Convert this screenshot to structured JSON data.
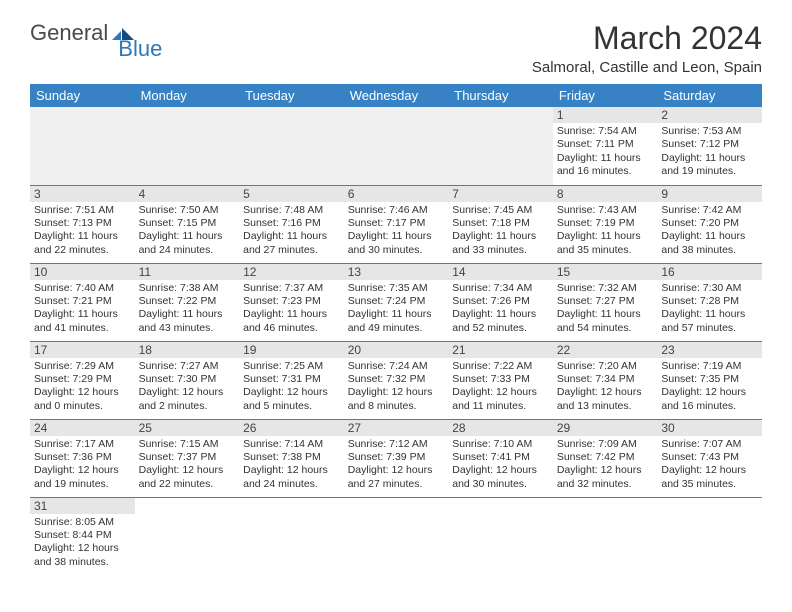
{
  "logo": {
    "text1": "General",
    "text2": "Blue"
  },
  "title": "March 2024",
  "subtitle": "Salmoral, Castille and Leon, Spain",
  "colors": {
    "header_bg": "#3682c4",
    "header_text": "#ffffff",
    "daynum_bg": "#e6e6e6",
    "empty_bg": "#f0f0f0",
    "border": "#3682c4",
    "logo_blue": "#2e78b7",
    "text": "#333333"
  },
  "daysOfWeek": [
    "Sunday",
    "Monday",
    "Tuesday",
    "Wednesday",
    "Thursday",
    "Friday",
    "Saturday"
  ],
  "weeks": [
    [
      {
        "empty": true
      },
      {
        "empty": true
      },
      {
        "empty": true
      },
      {
        "empty": true
      },
      {
        "empty": true
      },
      {
        "day": "1",
        "sunrise": "Sunrise: 7:54 AM",
        "sunset": "Sunset: 7:11 PM",
        "daylight": "Daylight: 11 hours and 16 minutes."
      },
      {
        "day": "2",
        "sunrise": "Sunrise: 7:53 AM",
        "sunset": "Sunset: 7:12 PM",
        "daylight": "Daylight: 11 hours and 19 minutes."
      }
    ],
    [
      {
        "day": "3",
        "sunrise": "Sunrise: 7:51 AM",
        "sunset": "Sunset: 7:13 PM",
        "daylight": "Daylight: 11 hours and 22 minutes."
      },
      {
        "day": "4",
        "sunrise": "Sunrise: 7:50 AM",
        "sunset": "Sunset: 7:15 PM",
        "daylight": "Daylight: 11 hours and 24 minutes."
      },
      {
        "day": "5",
        "sunrise": "Sunrise: 7:48 AM",
        "sunset": "Sunset: 7:16 PM",
        "daylight": "Daylight: 11 hours and 27 minutes."
      },
      {
        "day": "6",
        "sunrise": "Sunrise: 7:46 AM",
        "sunset": "Sunset: 7:17 PM",
        "daylight": "Daylight: 11 hours and 30 minutes."
      },
      {
        "day": "7",
        "sunrise": "Sunrise: 7:45 AM",
        "sunset": "Sunset: 7:18 PM",
        "daylight": "Daylight: 11 hours and 33 minutes."
      },
      {
        "day": "8",
        "sunrise": "Sunrise: 7:43 AM",
        "sunset": "Sunset: 7:19 PM",
        "daylight": "Daylight: 11 hours and 35 minutes."
      },
      {
        "day": "9",
        "sunrise": "Sunrise: 7:42 AM",
        "sunset": "Sunset: 7:20 PM",
        "daylight": "Daylight: 11 hours and 38 minutes."
      }
    ],
    [
      {
        "day": "10",
        "sunrise": "Sunrise: 7:40 AM",
        "sunset": "Sunset: 7:21 PM",
        "daylight": "Daylight: 11 hours and 41 minutes."
      },
      {
        "day": "11",
        "sunrise": "Sunrise: 7:38 AM",
        "sunset": "Sunset: 7:22 PM",
        "daylight": "Daylight: 11 hours and 43 minutes."
      },
      {
        "day": "12",
        "sunrise": "Sunrise: 7:37 AM",
        "sunset": "Sunset: 7:23 PM",
        "daylight": "Daylight: 11 hours and 46 minutes."
      },
      {
        "day": "13",
        "sunrise": "Sunrise: 7:35 AM",
        "sunset": "Sunset: 7:24 PM",
        "daylight": "Daylight: 11 hours and 49 minutes."
      },
      {
        "day": "14",
        "sunrise": "Sunrise: 7:34 AM",
        "sunset": "Sunset: 7:26 PM",
        "daylight": "Daylight: 11 hours and 52 minutes."
      },
      {
        "day": "15",
        "sunrise": "Sunrise: 7:32 AM",
        "sunset": "Sunset: 7:27 PM",
        "daylight": "Daylight: 11 hours and 54 minutes."
      },
      {
        "day": "16",
        "sunrise": "Sunrise: 7:30 AM",
        "sunset": "Sunset: 7:28 PM",
        "daylight": "Daylight: 11 hours and 57 minutes."
      }
    ],
    [
      {
        "day": "17",
        "sunrise": "Sunrise: 7:29 AM",
        "sunset": "Sunset: 7:29 PM",
        "daylight": "Daylight: 12 hours and 0 minutes."
      },
      {
        "day": "18",
        "sunrise": "Sunrise: 7:27 AM",
        "sunset": "Sunset: 7:30 PM",
        "daylight": "Daylight: 12 hours and 2 minutes."
      },
      {
        "day": "19",
        "sunrise": "Sunrise: 7:25 AM",
        "sunset": "Sunset: 7:31 PM",
        "daylight": "Daylight: 12 hours and 5 minutes."
      },
      {
        "day": "20",
        "sunrise": "Sunrise: 7:24 AM",
        "sunset": "Sunset: 7:32 PM",
        "daylight": "Daylight: 12 hours and 8 minutes."
      },
      {
        "day": "21",
        "sunrise": "Sunrise: 7:22 AM",
        "sunset": "Sunset: 7:33 PM",
        "daylight": "Daylight: 12 hours and 11 minutes."
      },
      {
        "day": "22",
        "sunrise": "Sunrise: 7:20 AM",
        "sunset": "Sunset: 7:34 PM",
        "daylight": "Daylight: 12 hours and 13 minutes."
      },
      {
        "day": "23",
        "sunrise": "Sunrise: 7:19 AM",
        "sunset": "Sunset: 7:35 PM",
        "daylight": "Daylight: 12 hours and 16 minutes."
      }
    ],
    [
      {
        "day": "24",
        "sunrise": "Sunrise: 7:17 AM",
        "sunset": "Sunset: 7:36 PM",
        "daylight": "Daylight: 12 hours and 19 minutes."
      },
      {
        "day": "25",
        "sunrise": "Sunrise: 7:15 AM",
        "sunset": "Sunset: 7:37 PM",
        "daylight": "Daylight: 12 hours and 22 minutes."
      },
      {
        "day": "26",
        "sunrise": "Sunrise: 7:14 AM",
        "sunset": "Sunset: 7:38 PM",
        "daylight": "Daylight: 12 hours and 24 minutes."
      },
      {
        "day": "27",
        "sunrise": "Sunrise: 7:12 AM",
        "sunset": "Sunset: 7:39 PM",
        "daylight": "Daylight: 12 hours and 27 minutes."
      },
      {
        "day": "28",
        "sunrise": "Sunrise: 7:10 AM",
        "sunset": "Sunset: 7:41 PM",
        "daylight": "Daylight: 12 hours and 30 minutes."
      },
      {
        "day": "29",
        "sunrise": "Sunrise: 7:09 AM",
        "sunset": "Sunset: 7:42 PM",
        "daylight": "Daylight: 12 hours and 32 minutes."
      },
      {
        "day": "30",
        "sunrise": "Sunrise: 7:07 AM",
        "sunset": "Sunset: 7:43 PM",
        "daylight": "Daylight: 12 hours and 35 minutes."
      }
    ],
    [
      {
        "day": "31",
        "sunrise": "Sunrise: 8:05 AM",
        "sunset": "Sunset: 8:44 PM",
        "daylight": "Daylight: 12 hours and 38 minutes."
      },
      {
        "trailing": true
      },
      {
        "trailing": true
      },
      {
        "trailing": true
      },
      {
        "trailing": true
      },
      {
        "trailing": true
      },
      {
        "trailing": true
      }
    ]
  ]
}
